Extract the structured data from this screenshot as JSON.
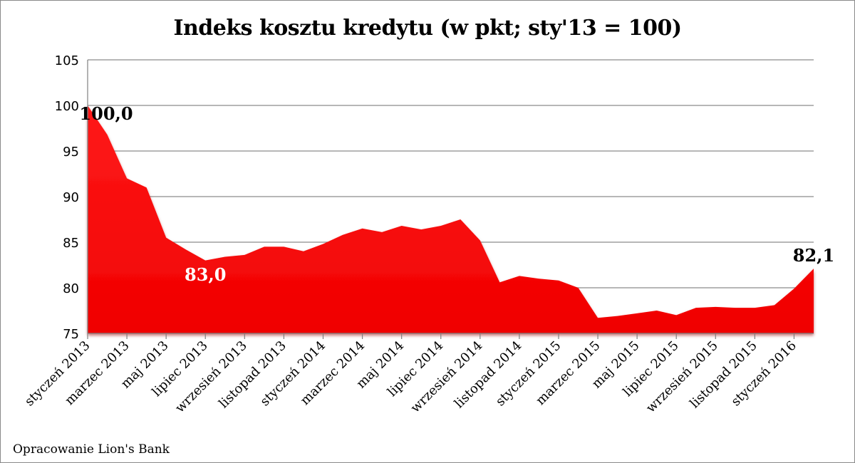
{
  "chart_data": {
    "type": "area",
    "title": "Indeks kosztu kredytu (w pkt; sty'13 = 100)",
    "xlabel": "",
    "ylabel": "",
    "ylim": [
      75,
      105
    ],
    "yticks": [
      75,
      80,
      85,
      90,
      95,
      100,
      105
    ],
    "grid": true,
    "legend": "none",
    "color": "#ff0000",
    "x": [
      "styczeń 2013",
      "luty 2013",
      "marzec 2013",
      "kwiecień 2013",
      "maj 2013",
      "czerwiec 2013",
      "lipiec 2013",
      "sierpień 2013",
      "wrzesień 2013",
      "październik 2013",
      "listopad 2013",
      "grudzień 2013",
      "styczeń 2014",
      "luty 2014",
      "marzec 2014",
      "kwiecień 2014",
      "maj 2014",
      "czerwiec 2014",
      "lipiec 2014",
      "sierpień 2014",
      "wrzesień 2014",
      "październik 2014",
      "listopad 2014",
      "grudzień 2014",
      "styczeń 2015",
      "luty 2015",
      "marzec 2015",
      "kwiecień 2015",
      "maj 2015",
      "czerwiec 2015",
      "lipiec 2015",
      "sierpień 2015",
      "wrzesień 2015",
      "październik 2015",
      "listopad 2015",
      "grudzień 2015",
      "styczeń 2016",
      "luty 2016"
    ],
    "tick_labels": [
      "styczeń 2013",
      "marzec 2013",
      "maj 2013",
      "lipiec 2013",
      "wrzesień 2013",
      "listopad 2013",
      "styczeń 2014",
      "marzec 2014",
      "maj 2014",
      "lipiec 2014",
      "wrzesień 2014",
      "listopad 2014",
      "styczeń 2015",
      "marzec 2015",
      "maj 2015",
      "lipiec 2015",
      "wrzesień 2015",
      "listopad 2015",
      "styczeń 2016"
    ],
    "values": [
      100.0,
      96.8,
      92.0,
      91.0,
      85.5,
      84.2,
      83.0,
      83.4,
      83.6,
      84.5,
      84.5,
      84.0,
      84.8,
      85.8,
      86.5,
      86.1,
      86.8,
      86.4,
      86.8,
      87.5,
      85.2,
      80.6,
      81.3,
      81.0,
      80.8,
      80.0,
      76.7,
      76.9,
      77.2,
      77.5,
      77.0,
      77.8,
      77.9,
      77.8,
      77.8,
      78.1,
      79.9,
      82.1
    ],
    "annotations": [
      {
        "text": "100,0",
        "index": 0,
        "color": "#000000"
      },
      {
        "text": "83,0",
        "index": 6,
        "color": "#ffffff"
      },
      {
        "text": "82,1",
        "index": 37,
        "color": "#000000"
      }
    ]
  },
  "footer": {
    "credit": "Opracowanie Lion's Bank"
  }
}
